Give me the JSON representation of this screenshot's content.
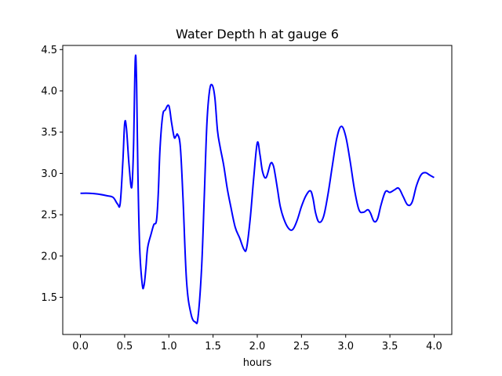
{
  "chart_data": {
    "type": "line",
    "title": "Water Depth h at gauge 6",
    "xlabel": "hours",
    "ylabel": "",
    "xlim": [
      -0.2,
      4.2
    ],
    "ylim": [
      1.05,
      4.55
    ],
    "xticks": [
      0.0,
      0.5,
      1.0,
      1.5,
      2.0,
      2.5,
      3.0,
      3.5,
      4.0
    ],
    "xtick_labels": [
      "0.0",
      "0.5",
      "1.0",
      "1.5",
      "2.0",
      "2.5",
      "3.0",
      "3.5",
      "4.0"
    ],
    "yticks": [
      1.5,
      2.0,
      2.5,
      3.0,
      3.5,
      4.0,
      4.5
    ],
    "ytick_labels": [
      "1.5",
      "2.0",
      "2.5",
      "3.0",
      "3.5",
      "4.0",
      "4.5"
    ],
    "grid": false,
    "line_color": "#0000ff",
    "series": [
      {
        "name": "",
        "x": [
          0.0,
          0.1,
          0.2,
          0.3,
          0.37,
          0.42,
          0.45,
          0.48,
          0.5,
          0.52,
          0.55,
          0.58,
          0.6,
          0.62,
          0.635,
          0.65,
          0.67,
          0.7,
          0.72,
          0.74,
          0.76,
          0.8,
          0.83,
          0.86,
          0.88,
          0.9,
          0.93,
          0.96,
          1.0,
          1.03,
          1.06,
          1.08,
          1.1,
          1.13,
          1.16,
          1.2,
          1.25,
          1.3,
          1.33,
          1.37,
          1.4,
          1.43,
          1.46,
          1.49,
          1.52,
          1.55,
          1.58,
          1.62,
          1.66,
          1.7,
          1.75,
          1.8,
          1.85,
          1.88,
          1.92,
          1.96,
          2.0,
          2.03,
          2.06,
          2.1,
          2.15,
          2.18,
          2.2,
          2.23,
          2.26,
          2.3,
          2.35,
          2.4,
          2.45,
          2.5,
          2.55,
          2.6,
          2.63,
          2.66,
          2.7,
          2.75,
          2.8,
          2.85,
          2.9,
          2.95,
          3.0,
          3.05,
          3.1,
          3.15,
          3.2,
          3.25,
          3.28,
          3.32,
          3.36,
          3.4,
          3.45,
          3.5,
          3.55,
          3.6,
          3.65,
          3.7,
          3.75,
          3.8,
          3.85,
          3.9,
          3.95,
          4.0
        ],
        "y": [
          2.76,
          2.76,
          2.75,
          2.73,
          2.71,
          2.63,
          2.64,
          3.15,
          3.6,
          3.55,
          3.1,
          2.83,
          3.3,
          4.38,
          4.1,
          3.0,
          2.1,
          1.65,
          1.65,
          1.85,
          2.1,
          2.27,
          2.38,
          2.43,
          2.75,
          3.3,
          3.7,
          3.77,
          3.82,
          3.62,
          3.44,
          3.45,
          3.47,
          3.32,
          2.7,
          1.7,
          1.3,
          1.2,
          1.26,
          1.85,
          2.7,
          3.6,
          4.0,
          4.07,
          3.92,
          3.52,
          3.32,
          3.1,
          2.82,
          2.6,
          2.35,
          2.22,
          2.08,
          2.1,
          2.45,
          2.95,
          3.37,
          3.23,
          3.02,
          2.95,
          3.12,
          3.1,
          3.0,
          2.8,
          2.6,
          2.45,
          2.34,
          2.32,
          2.43,
          2.6,
          2.73,
          2.79,
          2.7,
          2.52,
          2.41,
          2.48,
          2.75,
          3.1,
          3.43,
          3.57,
          3.45,
          3.15,
          2.8,
          2.56,
          2.53,
          2.56,
          2.52,
          2.42,
          2.45,
          2.62,
          2.78,
          2.77,
          2.8,
          2.82,
          2.72,
          2.62,
          2.65,
          2.85,
          2.98,
          3.01,
          2.98,
          2.95
        ]
      }
    ]
  }
}
